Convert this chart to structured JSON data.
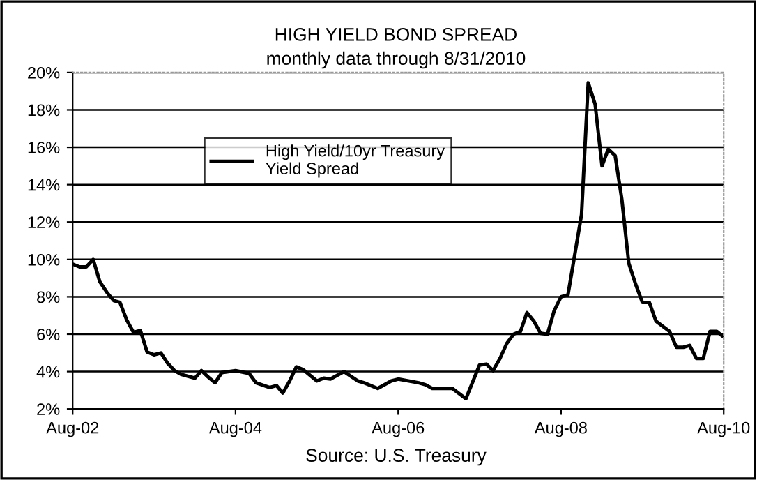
{
  "chart_data": {
    "type": "line",
    "title": "HIGH YIELD BOND SPREAD",
    "subtitle": "monthly data through 8/31/2010",
    "annotations": [
      "Source: U.S. Treasury"
    ],
    "xlim": [
      "2002-08",
      "2010-08"
    ],
    "xticks": [
      {
        "value": "2002-08",
        "label": "Aug-02"
      },
      {
        "value": "2004-08",
        "label": "Aug-04"
      },
      {
        "value": "2006-08",
        "label": "Aug-06"
      },
      {
        "value": "2008-08",
        "label": "Aug-08"
      },
      {
        "value": "2010-08",
        "label": "Aug-10"
      }
    ],
    "ylim": [
      2,
      20
    ],
    "yticks": [
      {
        "value": 2,
        "label": "2%"
      },
      {
        "value": 4,
        "label": "4%"
      },
      {
        "value": 6,
        "label": "6%"
      },
      {
        "value": 8,
        "label": "8%"
      },
      {
        "value": 10,
        "label": "10%"
      },
      {
        "value": 12,
        "label": "12%"
      },
      {
        "value": 14,
        "label": "14%"
      },
      {
        "value": 16,
        "label": "16%"
      },
      {
        "value": 18,
        "label": "18%"
      },
      {
        "value": 20,
        "label": "20%"
      }
    ],
    "grid": "y",
    "legend": "top left",
    "marker": "none",
    "line_style": "solid",
    "series": [
      {
        "name": "High Yield/10yr Treasury\nYield Spread",
        "color": "#000000",
        "x": [
          "2002-08",
          "2002-09",
          "2002-10",
          "2002-11",
          "2002-12",
          "2003-01",
          "2003-02",
          "2003-03",
          "2003-04",
          "2003-05",
          "2003-06",
          "2003-07",
          "2003-08",
          "2003-09",
          "2003-10",
          "2003-11",
          "2003-12",
          "2004-02",
          "2004-03",
          "2004-04",
          "2004-05",
          "2004-06",
          "2004-08",
          "2004-10",
          "2004-11",
          "2005-01",
          "2005-02",
          "2005-03",
          "2005-04",
          "2005-05",
          "2005-06",
          "2005-08",
          "2005-09",
          "2005-10",
          "2005-12",
          "2006-02",
          "2006-03",
          "2006-05",
          "2006-07",
          "2006-08",
          "2006-11",
          "2006-12",
          "2007-01",
          "2007-04",
          "2007-06",
          "2007-08",
          "2007-09",
          "2007-10",
          "2007-11",
          "2007-12",
          "2008-01",
          "2008-02",
          "2008-03",
          "2008-04",
          "2008-05",
          "2008-06",
          "2008-07",
          "2008-08",
          "2008-09",
          "2008-11",
          "2008-12",
          "2009-01",
          "2009-02",
          "2009-03",
          "2009-04",
          "2009-05",
          "2009-06",
          "2009-07",
          "2009-08",
          "2009-09",
          "2009-10",
          "2009-12",
          "2010-01",
          "2010-02",
          "2010-03",
          "2010-04",
          "2010-05",
          "2010-06",
          "2010-07",
          "2010-08"
        ],
        "values": [
          9.75,
          9.6,
          9.6,
          10.0,
          8.8,
          8.25,
          7.8,
          7.7,
          6.75,
          6.1,
          6.2,
          5.05,
          4.9,
          5.0,
          4.45,
          4.05,
          3.85,
          3.65,
          4.05,
          3.7,
          3.4,
          3.95,
          4.05,
          3.9,
          3.4,
          3.15,
          3.25,
          2.85,
          3.5,
          4.25,
          4.1,
          3.5,
          3.65,
          3.6,
          4.0,
          3.5,
          3.4,
          3.1,
          3.5,
          3.6,
          3.4,
          3.3,
          3.1,
          3.1,
          2.55,
          4.35,
          4.4,
          4.05,
          4.7,
          5.5,
          6.0,
          6.15,
          7.15,
          6.7,
          6.05,
          6.0,
          7.25,
          8.0,
          8.1,
          12.4,
          19.45,
          18.3,
          15.0,
          15.9,
          15.55,
          13.2,
          9.8,
          8.7,
          7.7,
          7.7,
          6.7,
          6.15,
          5.3,
          5.3,
          5.4,
          4.7,
          4.7,
          6.15,
          6.15,
          5.85
        ]
      }
    ]
  }
}
